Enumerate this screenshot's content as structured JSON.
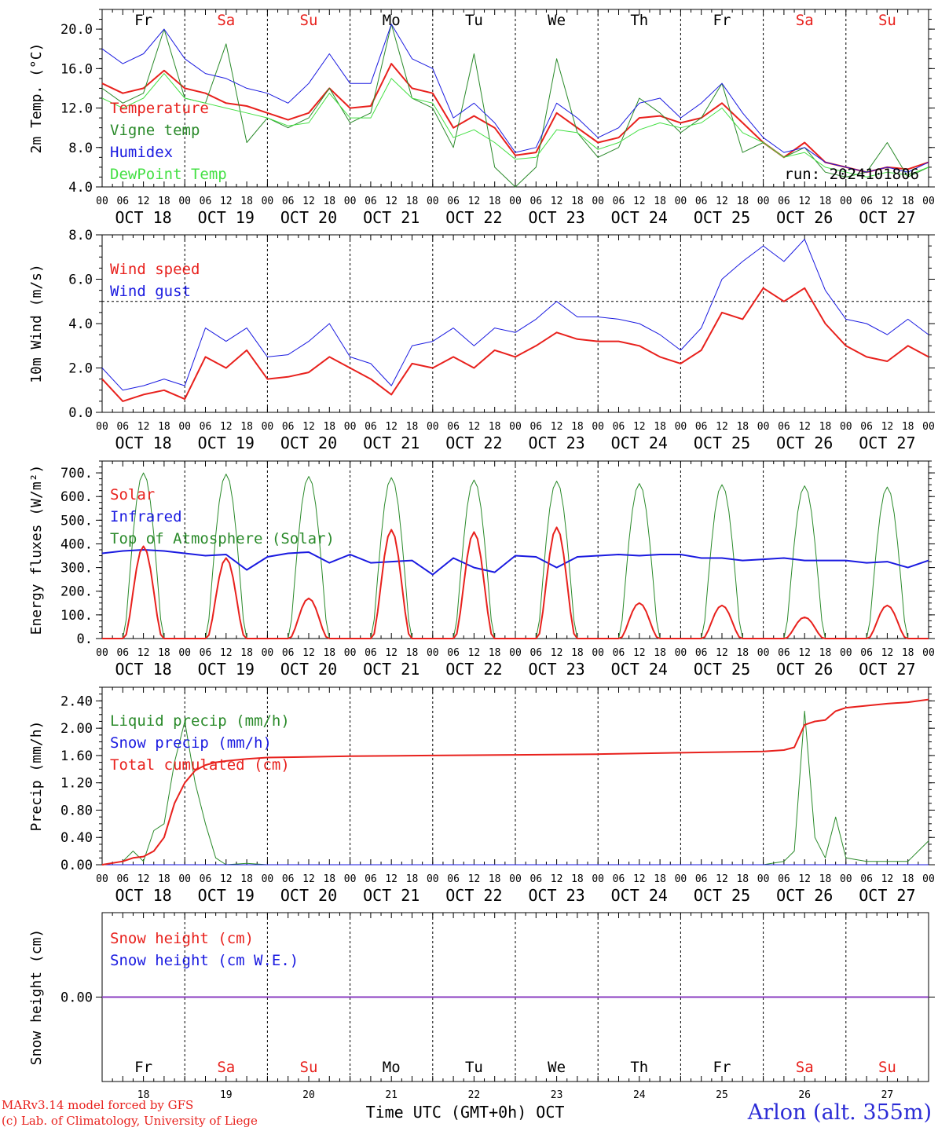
{
  "chart_data": [
    {
      "type": "line",
      "ylabel": "2m Temp. (°C)",
      "ylim": [
        4.0,
        22.0
      ],
      "yticks": [
        "4.0",
        "8.0",
        "12.0",
        "16.0",
        "20.0"
      ],
      "day_labels": [
        "Fr",
        "Sa",
        "Su",
        "Mo",
        "Tu",
        "We",
        "Th",
        "Fr",
        "Sa",
        "Su"
      ],
      "date_labels": [
        "OCT 18",
        "OCT 19",
        "OCT 20",
        "OCT 21",
        "OCT 22",
        "OCT 23",
        "OCT 24",
        "OCT 25",
        "OCT 26",
        "OCT 27"
      ],
      "run_label": "run: 2024101806",
      "x_hours": [
        0,
        6,
        12,
        18,
        24,
        30,
        36,
        42,
        48,
        54,
        60,
        66,
        72,
        78,
        84,
        90,
        96,
        102,
        108,
        114,
        120,
        126,
        132,
        138,
        144,
        150,
        156,
        162,
        168,
        174,
        180,
        186,
        192,
        198,
        204,
        210,
        216,
        222,
        228,
        234,
        240
      ],
      "series": [
        {
          "name": "Temperature",
          "color": "#e8211d",
          "width": 2,
          "values": [
            14.5,
            13.5,
            14.0,
            15.8,
            14.0,
            13.5,
            12.5,
            12.2,
            11.5,
            10.8,
            11.5,
            14.0,
            12.0,
            12.2,
            16.5,
            14.0,
            13.5,
            10.0,
            11.2,
            10.0,
            7.2,
            7.5,
            11.5,
            10.0,
            8.5,
            9.0,
            11.0,
            11.2,
            10.5,
            11.0,
            12.5,
            10.5,
            8.5,
            7.0,
            8.5,
            6.5,
            6.0,
            5.5,
            6.0,
            5.8,
            6.5
          ]
        },
        {
          "name": "Vigne temp",
          "color": "#2a8a2a",
          "width": 1,
          "values": [
            14.0,
            12.5,
            13.5,
            20.0,
            13.0,
            12.5,
            18.5,
            8.5,
            11.0,
            10.0,
            11.0,
            14.0,
            10.5,
            11.5,
            20.5,
            13.0,
            12.0,
            8.0,
            17.5,
            6.0,
            4.0,
            6.0,
            17.0,
            9.5,
            7.0,
            8.0,
            13.0,
            11.5,
            9.5,
            11.0,
            14.5,
            7.5,
            8.5,
            7.0,
            8.0,
            5.5,
            5.0,
            5.5,
            8.5,
            5.0,
            6.0
          ]
        },
        {
          "name": "Humidex",
          "color": "#1a1ae0",
          "width": 1,
          "values": [
            18.0,
            16.5,
            17.5,
            20.0,
            17.0,
            15.5,
            15.0,
            14.0,
            13.5,
            12.5,
            14.5,
            17.5,
            14.5,
            14.5,
            20.5,
            17.0,
            16.0,
            11.0,
            12.5,
            10.5,
            7.5,
            8.0,
            12.5,
            11.0,
            9.0,
            10.0,
            12.5,
            13.0,
            11.0,
            12.5,
            14.5,
            11.5,
            9.0,
            7.5,
            8.0,
            6.5,
            6.0,
            5.5,
            6.0,
            5.5,
            6.5
          ]
        },
        {
          "name": "DewPoint Temp",
          "color": "#44e044",
          "width": 1,
          "values": [
            13.0,
            12.0,
            13.0,
            15.5,
            13.0,
            12.5,
            12.0,
            11.5,
            11.0,
            10.2,
            10.5,
            13.5,
            11.0,
            11.0,
            15.0,
            13.0,
            12.5,
            9.0,
            9.8,
            8.5,
            6.8,
            7.0,
            9.8,
            9.5,
            7.8,
            8.5,
            9.8,
            10.5,
            10.0,
            10.5,
            12.0,
            9.5,
            8.5,
            7.0,
            7.5,
            6.0,
            5.5,
            5.0,
            5.5,
            5.2,
            6.0
          ]
        }
      ]
    },
    {
      "type": "line",
      "ylabel": "10m Wind (m/s)",
      "ylim": [
        0.0,
        8.0
      ],
      "yticks": [
        "0.0",
        "2.0",
        "4.0",
        "6.0",
        "8.0"
      ],
      "date_labels": [
        "OCT 18",
        "OCT 19",
        "OCT 20",
        "OCT 21",
        "OCT 22",
        "OCT 23",
        "OCT 24",
        "OCT 25",
        "OCT 26",
        "OCT 27"
      ],
      "reference_line": 5.0,
      "x_hours": [
        0,
        6,
        12,
        18,
        24,
        30,
        36,
        42,
        48,
        54,
        60,
        66,
        72,
        78,
        84,
        90,
        96,
        102,
        108,
        114,
        120,
        126,
        132,
        138,
        144,
        150,
        156,
        162,
        168,
        174,
        180,
        186,
        192,
        198,
        204,
        210,
        216,
        222,
        228,
        234,
        240
      ],
      "series": [
        {
          "name": "Wind speed",
          "color": "#e8211d",
          "width": 2,
          "values": [
            1.5,
            0.5,
            0.8,
            1.0,
            0.6,
            2.5,
            2.0,
            2.8,
            1.5,
            1.6,
            1.8,
            2.5,
            2.0,
            1.5,
            0.8,
            2.2,
            2.0,
            2.5,
            2.0,
            2.8,
            2.5,
            3.0,
            3.6,
            3.3,
            3.2,
            3.2,
            3.0,
            2.5,
            2.2,
            2.8,
            4.5,
            4.2,
            5.6,
            5.0,
            5.6,
            4.0,
            3.0,
            2.5,
            2.3,
            3.0,
            2.5
          ]
        },
        {
          "name": "Wind gust",
          "color": "#1a1ae0",
          "width": 1,
          "values": [
            2.0,
            1.0,
            1.2,
            1.5,
            1.2,
            3.8,
            3.2,
            3.8,
            2.5,
            2.6,
            3.2,
            4.0,
            2.5,
            2.2,
            1.2,
            3.0,
            3.2,
            3.8,
            3.0,
            3.8,
            3.6,
            4.2,
            5.0,
            4.3,
            4.3,
            4.2,
            4.0,
            3.5,
            2.8,
            3.8,
            6.0,
            6.8,
            7.5,
            6.8,
            7.8,
            5.5,
            4.2,
            4.0,
            3.5,
            4.2,
            3.5
          ]
        }
      ]
    },
    {
      "type": "line",
      "ylabel": "Energy fluxes (W/m²)",
      "ylim": [
        0,
        750
      ],
      "yticks": [
        "0.",
        "100.",
        "200.",
        "300.",
        "400.",
        "500.",
        "600.",
        "700."
      ],
      "date_labels": [
        "OCT 18",
        "OCT 19",
        "OCT 20",
        "OCT 21",
        "OCT 22",
        "OCT 23",
        "OCT 24",
        "OCT 25",
        "OCT 26",
        "OCT 27"
      ],
      "daily_peaks": {
        "top_of_atmosphere": [
          700,
          695,
          685,
          680,
          670,
          665,
          655,
          650,
          645,
          640
        ],
        "solar": [
          390,
          340,
          170,
          460,
          450,
          470,
          150,
          140,
          90,
          140
        ]
      },
      "infrared_values": [
        360,
        370,
        375,
        370,
        360,
        350,
        355,
        290,
        345,
        360,
        365,
        320,
        355,
        320,
        325,
        330,
        270,
        340,
        300,
        280,
        350,
        345,
        300,
        345,
        350,
        355,
        350,
        355,
        355,
        340,
        340,
        330,
        335,
        340,
        330,
        330,
        330,
        320,
        325,
        300,
        330
      ],
      "series": [
        {
          "name": "Solar",
          "color": "#e8211d",
          "width": 2
        },
        {
          "name": "Infrared",
          "color": "#1a1ae0",
          "width": 2
        },
        {
          "name": "Top of Atmosphere (Solar)",
          "color": "#2a8a2a",
          "width": 1
        }
      ]
    },
    {
      "type": "line",
      "ylabel": "Precip (mm/h)",
      "ylim": [
        0.0,
        2.6
      ],
      "yticks": [
        "0.00",
        "0.40",
        "0.80",
        "1.20",
        "1.60",
        "2.00",
        "2.40"
      ],
      "date_labels": [
        "OCT 18",
        "OCT 19",
        "OCT 20",
        "OCT 21",
        "OCT 22",
        "OCT 23",
        "OCT 24",
        "OCT 25",
        "OCT 26",
        "OCT 27"
      ],
      "x_hours": [
        0,
        6,
        9,
        12,
        15,
        18,
        21,
        24,
        27,
        30,
        33,
        36,
        42,
        48,
        72,
        96,
        120,
        144,
        168,
        192,
        198,
        201,
        204,
        207,
        210,
        213,
        216,
        222,
        228,
        234,
        240
      ],
      "series": [
        {
          "name": "Liquid precip (mm/h)",
          "color": "#2a8a2a",
          "width": 1,
          "values": [
            0.0,
            0.05,
            0.2,
            0.05,
            0.5,
            0.6,
            1.5,
            2.1,
            1.2,
            0.6,
            0.1,
            0.0,
            0.02,
            0.0,
            0.0,
            0.0,
            0.0,
            0.0,
            0.0,
            0.0,
            0.05,
            0.2,
            2.25,
            0.4,
            0.1,
            0.7,
            0.1,
            0.05,
            0.05,
            0.05,
            0.35
          ]
        },
        {
          "name": "Snow precip (mm/h)",
          "color": "#1a1ae0",
          "width": 1,
          "values": [
            0,
            0,
            0,
            0,
            0,
            0,
            0,
            0,
            0,
            0,
            0,
            0,
            0,
            0,
            0,
            0,
            0,
            0,
            0,
            0,
            0,
            0,
            0,
            0,
            0,
            0,
            0,
            0,
            0,
            0,
            0
          ]
        },
        {
          "name": "Total cumulated (cm)",
          "color": "#e8211d",
          "width": 2,
          "values": [
            0.0,
            0.05,
            0.1,
            0.12,
            0.2,
            0.4,
            0.9,
            1.2,
            1.38,
            1.46,
            1.5,
            1.52,
            1.55,
            1.57,
            1.59,
            1.6,
            1.61,
            1.62,
            1.64,
            1.66,
            1.68,
            1.72,
            2.05,
            2.1,
            2.12,
            2.25,
            2.3,
            2.33,
            2.36,
            2.38,
            2.42
          ]
        }
      ]
    },
    {
      "type": "line",
      "ylabel": "Snow height (cm)",
      "ylim": [
        -1.0,
        1.0
      ],
      "yticks": [
        "0.00"
      ],
      "day_labels": [
        "Fr",
        "Sa",
        "Su",
        "Mo",
        "Tu",
        "We",
        "Th",
        "Fr",
        "Sa",
        "Su"
      ],
      "day_numbers": [
        "18",
        "19",
        "20",
        "21",
        "22",
        "23",
        "24",
        "25",
        "26",
        "27"
      ],
      "xlabel": "Time UTC (GMT+0h) OCT",
      "series": [
        {
          "name": "Snow height (cm)",
          "color": "#e8211d",
          "width": 1,
          "values": [
            0.0,
            0.0
          ]
        },
        {
          "name": "Snow height (cm W.E.)",
          "color": "#1a1ae0",
          "width": 1,
          "values": [
            0.0,
            0.0
          ]
        }
      ]
    }
  ],
  "hour_ticks": [
    "00",
    "06",
    "12",
    "18"
  ],
  "hour_end": "00",
  "weekend_color": "#e8211d",
  "weekday_color": "#000000",
  "footer": {
    "credit_line1": "MARv3.14 model forced by GFS",
    "credit_line2": "(c) Lab. of Climatology, University of Liege",
    "station": "Arlon (alt. 355m)"
  }
}
